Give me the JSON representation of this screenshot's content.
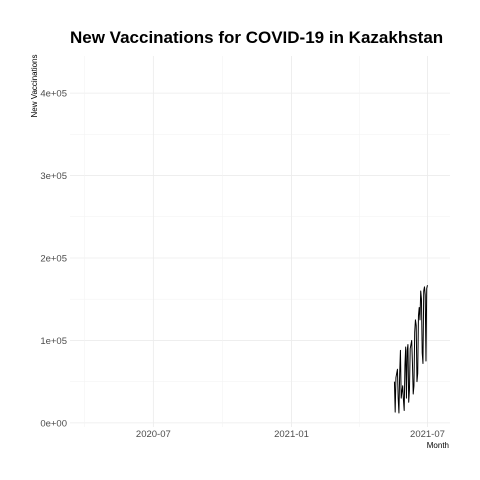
{
  "chart_data": {
    "type": "line",
    "title": "New Vaccinations for COVID-19 in Kazakhstan",
    "xlabel": "Month",
    "ylabel": "New Vaccinations",
    "xlim": [
      "2020-03-12",
      "2021-07-31"
    ],
    "ylim": [
      -5000,
      445000
    ],
    "x_ticks": [
      {
        "date": "2020-07-01",
        "label": "2020-07"
      },
      {
        "date": "2021-01-01",
        "label": "2021-01"
      },
      {
        "date": "2021-07-01",
        "label": "2021-07"
      }
    ],
    "y_ticks": [
      {
        "value": 0,
        "label": "0e+00"
      },
      {
        "value": 100000,
        "label": "1e+05"
      },
      {
        "value": 200000,
        "label": "2e+05"
      },
      {
        "value": 300000,
        "label": "3e+05"
      },
      {
        "value": 400000,
        "label": "4e+05"
      }
    ],
    "grid": true,
    "legend": "none",
    "series": [
      {
        "color": "#000000",
        "points": [
          [
            "2021-05-18",
            50000
          ],
          [
            "2021-05-19",
            13000
          ],
          [
            "2021-05-20",
            55000
          ],
          [
            "2021-05-21",
            60000
          ],
          [
            "2021-05-22",
            65000
          ],
          [
            "2021-05-23",
            30000
          ],
          [
            "2021-05-24",
            12000
          ],
          [
            "2021-05-25",
            60000
          ],
          [
            "2021-05-26",
            88000
          ],
          [
            "2021-05-27",
            30000
          ],
          [
            "2021-05-28",
            38000
          ],
          [
            "2021-05-29",
            45000
          ],
          [
            "2021-05-30",
            28000
          ],
          [
            "2021-05-31",
            15000
          ],
          [
            "2021-06-01",
            70000
          ],
          [
            "2021-06-02",
            92000
          ],
          [
            "2021-06-03",
            30000
          ],
          [
            "2021-06-04",
            88000
          ],
          [
            "2021-06-05",
            95000
          ],
          [
            "2021-06-06",
            25000
          ],
          [
            "2021-06-07",
            40000
          ],
          [
            "2021-06-08",
            90000
          ],
          [
            "2021-06-09",
            95000
          ],
          [
            "2021-06-10",
            100000
          ],
          [
            "2021-06-11",
            72000
          ],
          [
            "2021-06-12",
            35000
          ],
          [
            "2021-06-13",
            45000
          ],
          [
            "2021-06-14",
            110000
          ],
          [
            "2021-06-15",
            125000
          ],
          [
            "2021-06-16",
            118000
          ],
          [
            "2021-06-17",
            50000
          ],
          [
            "2021-06-18",
            60000
          ],
          [
            "2021-06-19",
            130000
          ],
          [
            "2021-06-20",
            140000
          ],
          [
            "2021-06-21",
            125000
          ],
          [
            "2021-06-22",
            160000
          ],
          [
            "2021-06-23",
            150000
          ],
          [
            "2021-06-24",
            85000
          ],
          [
            "2021-06-25",
            72000
          ],
          [
            "2021-06-26",
            160000
          ],
          [
            "2021-06-27",
            165000
          ],
          [
            "2021-06-28",
            155000
          ],
          [
            "2021-06-29",
            75000
          ],
          [
            "2021-06-30",
            163000
          ],
          [
            "2021-07-01",
            167000
          ]
        ]
      }
    ]
  }
}
